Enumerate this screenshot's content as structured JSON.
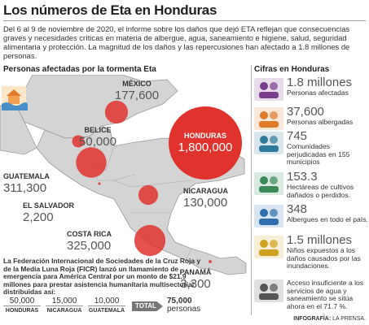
{
  "header": {
    "title": "Los números de Eta en Honduras",
    "intro": "Del 6 al 9 de noviembre de 2020, el informe sobre los daños que dejó ETA reflejan que consecuencias graves y necesidades críticas en materia de albergue, agua, saneamiento e higiene, salud, seguridad alimentaria y protección. La magnitud de los daños y las repercusiones han afectado a 1.8 millones de personas."
  },
  "map": {
    "title": "Personas afectadas por la tormenta Eta",
    "countries": [
      {
        "name": "MÉXICO",
        "value": 177600,
        "label": "177,600"
      },
      {
        "name": "BELICE",
        "value": 50000,
        "label": "50,000"
      },
      {
        "name": "HONDURAS",
        "value": 1800000,
        "label": "1,800,000"
      },
      {
        "name": "GUATEMALA",
        "value": 311300,
        "label": "311,300"
      },
      {
        "name": "EL SALVADOR",
        "value": 2200,
        "label": "2,200"
      },
      {
        "name": "NICARAGUA",
        "value": 130000,
        "label": "130,000"
      },
      {
        "name": "COSTA RICA",
        "value": 325000,
        "label": "325,000"
      },
      {
        "name": "PANAMÁ",
        "value": 3300,
        "label": "3,300"
      }
    ]
  },
  "appeal": {
    "text": "La Federación Internacional de Sociedades de la Cruz Roja y de la Media Luna Roja (FICR) lanzó un llamamiento de emergencia para América Central por un monto de $21.9 millones para prestar asistencia humanitaria multisectorial distribuidas así:",
    "donations": [
      {
        "amount": "50,000",
        "country": "HONDURAS"
      },
      {
        "amount": "15,000",
        "country": "NICARAGUA"
      },
      {
        "amount": "10,000",
        "country": "GUATEMALA"
      }
    ],
    "total_label": "TOTAL",
    "total": "75,000",
    "total_unit": "personas"
  },
  "figures": {
    "title": "Cifras en Honduras",
    "items": [
      {
        "value": "1.8 millones",
        "text": "Personas afectadas"
      },
      {
        "value": "37,600",
        "text": "Personas albergadas"
      },
      {
        "value": "745",
        "text": "Comunidades perjudicadas en 155 municipios"
      },
      {
        "value": "153.3",
        "text": "Hectáreas de cultivos dañados o perdidos."
      },
      {
        "value": "348",
        "text": "Albergues en todo el país."
      },
      {
        "value": "1.5 millones",
        "text": "Niños expuestos a los daños causados por las inundaciones."
      },
      {
        "text": "Acceso insuficiente a los servicios de agua y saneamiento se sitúa ahora en el 71.7 %."
      }
    ]
  },
  "credit": {
    "label": "INFOGRAFÍA:",
    "source": "LA PRENSA."
  }
}
